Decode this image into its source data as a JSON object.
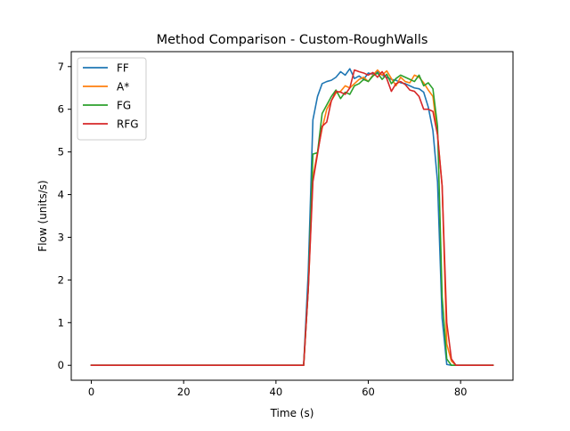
{
  "chart_data": {
    "type": "line",
    "title": "Method Comparison - Custom-RoughWalls",
    "xlabel": "Time (s)",
    "ylabel": "Flow (units/s)",
    "xlim": [
      -4.35,
      91.35
    ],
    "ylim": [
      -0.35,
      7.35
    ],
    "xticks": [
      0,
      20,
      40,
      60,
      80
    ],
    "yticks": [
      0,
      1,
      2,
      3,
      4,
      5,
      6,
      7
    ],
    "grid": false,
    "legend_position": "top-left",
    "series": [
      {
        "name": "FF",
        "color": "#1f77b4",
        "points": [
          [
            0,
            0
          ],
          [
            10,
            0
          ],
          [
            20,
            0
          ],
          [
            30,
            0
          ],
          [
            40,
            0
          ],
          [
            46,
            0
          ],
          [
            47,
            2.2
          ],
          [
            48,
            5.75
          ],
          [
            49,
            6.3
          ],
          [
            50,
            6.6
          ],
          [
            51,
            6.65
          ],
          [
            52,
            6.68
          ],
          [
            53,
            6.75
          ],
          [
            54,
            6.88
          ],
          [
            55,
            6.8
          ],
          [
            56,
            6.95
          ],
          [
            57,
            6.72
          ],
          [
            58,
            6.78
          ],
          [
            59,
            6.7
          ],
          [
            60,
            6.85
          ],
          [
            61,
            6.82
          ],
          [
            62,
            6.88
          ],
          [
            63,
            6.8
          ],
          [
            64,
            6.75
          ],
          [
            65,
            6.7
          ],
          [
            66,
            6.68
          ],
          [
            67,
            6.62
          ],
          [
            68,
            6.6
          ],
          [
            69,
            6.55
          ],
          [
            70,
            6.5
          ],
          [
            71,
            6.48
          ],
          [
            72,
            6.4
          ],
          [
            73,
            6.05
          ],
          [
            74,
            5.5
          ],
          [
            75,
            4.3
          ],
          [
            76,
            1.1
          ],
          [
            77,
            0.02
          ],
          [
            78,
            0.0
          ],
          [
            80,
            0
          ],
          [
            87,
            0
          ]
        ]
      },
      {
        "name": "A*",
        "color": "#ff7f0e",
        "points": [
          [
            0,
            0
          ],
          [
            10,
            0
          ],
          [
            20,
            0
          ],
          [
            30,
            0
          ],
          [
            40,
            0
          ],
          [
            46,
            0
          ],
          [
            47,
            1.8
          ],
          [
            48,
            4.4
          ],
          [
            49,
            5.0
          ],
          [
            50,
            5.55
          ],
          [
            51,
            6.0
          ],
          [
            52,
            6.2
          ],
          [
            53,
            6.38
          ],
          [
            54,
            6.42
          ],
          [
            55,
            6.55
          ],
          [
            56,
            6.5
          ],
          [
            57,
            6.6
          ],
          [
            58,
            6.7
          ],
          [
            59,
            6.75
          ],
          [
            60,
            6.65
          ],
          [
            61,
            6.8
          ],
          [
            62,
            6.92
          ],
          [
            63,
            6.8
          ],
          [
            64,
            6.9
          ],
          [
            65,
            6.72
          ],
          [
            66,
            6.55
          ],
          [
            67,
            6.75
          ],
          [
            68,
            6.65
          ],
          [
            69,
            6.62
          ],
          [
            70,
            6.8
          ],
          [
            71,
            6.75
          ],
          [
            72,
            6.62
          ],
          [
            73,
            6.45
          ],
          [
            74,
            6.3
          ],
          [
            75,
            5.4
          ],
          [
            76,
            4.2
          ],
          [
            77,
            0.5
          ],
          [
            78,
            0.1
          ],
          [
            79,
            0
          ],
          [
            87,
            0
          ]
        ]
      },
      {
        "name": "FG",
        "color": "#2ca02c",
        "points": [
          [
            0,
            0
          ],
          [
            10,
            0
          ],
          [
            20,
            0
          ],
          [
            30,
            0
          ],
          [
            40,
            0
          ],
          [
            46,
            0
          ],
          [
            47,
            1.8
          ],
          [
            48,
            4.95
          ],
          [
            49,
            4.98
          ],
          [
            50,
            5.9
          ],
          [
            51,
            6.1
          ],
          [
            52,
            6.3
          ],
          [
            53,
            6.45
          ],
          [
            54,
            6.25
          ],
          [
            55,
            6.4
          ],
          [
            56,
            6.35
          ],
          [
            57,
            6.55
          ],
          [
            58,
            6.6
          ],
          [
            59,
            6.7
          ],
          [
            60,
            6.65
          ],
          [
            61,
            6.78
          ],
          [
            62,
            6.85
          ],
          [
            63,
            6.7
          ],
          [
            64,
            6.82
          ],
          [
            65,
            6.6
          ],
          [
            66,
            6.72
          ],
          [
            67,
            6.8
          ],
          [
            68,
            6.75
          ],
          [
            69,
            6.7
          ],
          [
            70,
            6.65
          ],
          [
            71,
            6.8
          ],
          [
            72,
            6.55
          ],
          [
            73,
            6.62
          ],
          [
            74,
            6.48
          ],
          [
            75,
            5.6
          ],
          [
            76,
            1.6
          ],
          [
            77,
            0.15
          ],
          [
            78,
            0.0
          ],
          [
            80,
            0
          ],
          [
            87,
            0
          ]
        ]
      },
      {
        "name": "RFG",
        "color": "#d62728",
        "points": [
          [
            0,
            0
          ],
          [
            10,
            0
          ],
          [
            20,
            0
          ],
          [
            30,
            0
          ],
          [
            40,
            0
          ],
          [
            46,
            0
          ],
          [
            47,
            1.8
          ],
          [
            48,
            4.3
          ],
          [
            49,
            4.95
          ],
          [
            50,
            5.6
          ],
          [
            51,
            5.7
          ],
          [
            52,
            6.2
          ],
          [
            53,
            6.42
          ],
          [
            54,
            6.4
          ],
          [
            55,
            6.35
          ],
          [
            56,
            6.5
          ],
          [
            57,
            6.92
          ],
          [
            58,
            6.88
          ],
          [
            59,
            6.85
          ],
          [
            60,
            6.8
          ],
          [
            61,
            6.86
          ],
          [
            62,
            6.75
          ],
          [
            63,
            6.88
          ],
          [
            64,
            6.72
          ],
          [
            65,
            6.42
          ],
          [
            66,
            6.6
          ],
          [
            67,
            6.65
          ],
          [
            68,
            6.58
          ],
          [
            69,
            6.45
          ],
          [
            70,
            6.42
          ],
          [
            71,
            6.3
          ],
          [
            72,
            6.0
          ],
          [
            73,
            6.0
          ],
          [
            74,
            5.95
          ],
          [
            75,
            5.4
          ],
          [
            76,
            4.2
          ],
          [
            77,
            1.0
          ],
          [
            78,
            0.15
          ],
          [
            79,
            0
          ],
          [
            87,
            0
          ]
        ]
      }
    ]
  }
}
